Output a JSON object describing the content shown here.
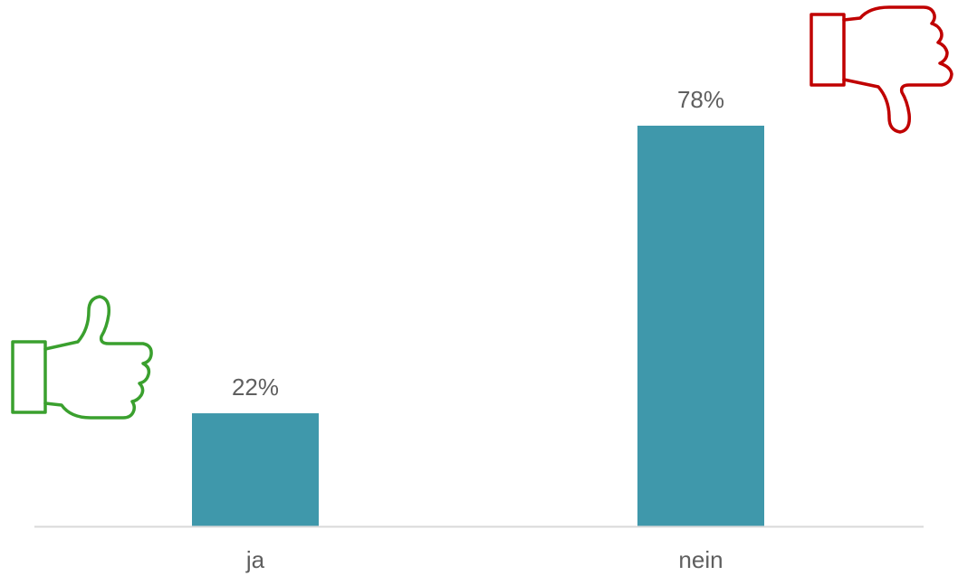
{
  "chart_data": {
    "type": "bar",
    "categories": [
      "ja",
      "nein"
    ],
    "values": [
      22,
      78
    ],
    "value_labels": [
      "22%",
      "78%"
    ],
    "unit": "%",
    "title": "",
    "xlabel": "",
    "ylabel": "",
    "ylim": [
      0,
      78
    ],
    "grid": false,
    "legend": "none",
    "bar_color": "#3f98ab",
    "axis_color": "#d9d9d9",
    "label_color": "#5f5f5f"
  },
  "icons": {
    "yes": {
      "name": "thumbs-up-icon",
      "color": "#3aa02e"
    },
    "no": {
      "name": "thumbs-down-icon",
      "color": "#c00000"
    }
  }
}
